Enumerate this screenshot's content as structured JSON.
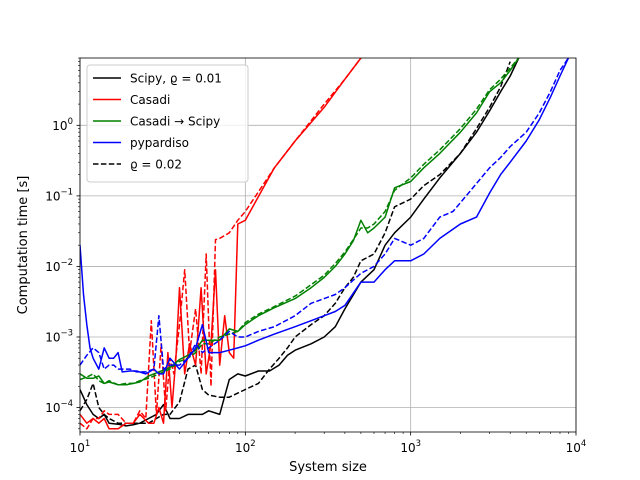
{
  "chart_data": {
    "type": "line",
    "title": "",
    "xlabel": "System size",
    "ylabel": "Computation time [s]",
    "xscale": "log",
    "yscale": "log",
    "xlim": [
      10,
      10000
    ],
    "ylim": [
      4.5e-05,
      9
    ],
    "grid": true,
    "legend_position": "top-left",
    "x_ticks": [
      {
        "value": 10,
        "base": "10",
        "exp": "1"
      },
      {
        "value": 100,
        "base": "10",
        "exp": "2"
      },
      {
        "value": 1000,
        "base": "10",
        "exp": "3"
      },
      {
        "value": 10000,
        "base": "10",
        "exp": "4"
      }
    ],
    "y_ticks": [
      {
        "value": 0.0001,
        "base": "10",
        "exp": "−4"
      },
      {
        "value": 0.001,
        "base": "10",
        "exp": "−3"
      },
      {
        "value": 0.01,
        "base": "10",
        "exp": "−2"
      },
      {
        "value": 0.1,
        "base": "10",
        "exp": "−1"
      },
      {
        "value": 1,
        "base": "10",
        "exp": "0"
      }
    ],
    "legend": [
      {
        "label": "Scipy, ϱ = 0.01",
        "color": "#000000",
        "dash": false
      },
      {
        "label": "Casadi",
        "color": "#ff0000",
        "dash": false
      },
      {
        "label": "Casadi → Scipy",
        "color": "#008000",
        "dash": false
      },
      {
        "label": "pypardiso",
        "color": "#0000ff",
        "dash": false
      },
      {
        "label": "ϱ = 0.02",
        "color": "#000000",
        "dash": true
      }
    ],
    "series": [
      {
        "key": "scipy_001",
        "color": "#000000",
        "dash": false,
        "x": [
          10,
          11,
          12,
          13,
          14,
          15,
          17,
          19,
          21,
          23,
          26,
          29,
          32,
          35,
          40,
          45,
          50,
          55,
          60,
          70,
          80,
          90,
          100,
          120,
          140,
          160,
          180,
          200,
          250,
          300,
          350,
          400,
          500,
          600,
          700,
          800,
          1000,
          1200,
          1500,
          2000,
          2500,
          3000,
          3500,
          4000,
          4500
        ],
        "y": [
          0.00018,
          0.00011,
          8e-05,
          7e-05,
          8e-05,
          6e-05,
          5.8e-05,
          5.5e-05,
          5.7e-05,
          6e-05,
          7e-05,
          8e-05,
          0.00011,
          7e-05,
          7e-05,
          8e-05,
          8e-05,
          8e-05,
          9e-05,
          8e-05,
          0.00025,
          0.0003,
          0.00028,
          0.00033,
          0.00033,
          0.0004,
          0.00055,
          0.00065,
          0.0008,
          0.001,
          0.0014,
          0.0025,
          0.006,
          0.009,
          0.02,
          0.03,
          0.05,
          0.09,
          0.18,
          0.4,
          0.8,
          1.6,
          3,
          5,
          9
        ]
      },
      {
        "key": "scipy_002",
        "color": "#000000",
        "dash": true,
        "x": [
          10,
          11,
          12,
          13,
          14,
          15,
          17,
          19,
          21,
          23,
          26,
          29,
          32,
          35,
          40,
          45,
          50,
          55,
          60,
          70,
          80,
          90,
          100,
          120,
          140,
          160,
          180,
          200,
          250,
          300,
          350,
          400,
          450,
          500,
          600,
          700,
          800,
          1000,
          1200,
          1500,
          2000,
          2500,
          3000,
          3500,
          4000
        ],
        "y": [
          9e-05,
          0.00013,
          0.00022,
          0.0001,
          8e-05,
          7e-05,
          6e-05,
          6e-05,
          6e-05,
          6e-05,
          6e-05,
          7e-05,
          8e-05,
          8e-05,
          0.00012,
          0.00035,
          0.0004,
          0.00018,
          0.00015,
          0.00014,
          0.00014,
          0.00016,
          0.00018,
          0.00022,
          0.00035,
          0.0005,
          0.0007,
          0.001,
          0.0015,
          0.002,
          0.003,
          0.005,
          0.007,
          0.012,
          0.015,
          0.03,
          0.07,
          0.09,
          0.14,
          0.2,
          0.4,
          0.9,
          1.8,
          3.5,
          8
        ]
      },
      {
        "key": "casadi",
        "color": "#ff0000",
        "dash": false,
        "x": [
          10,
          11,
          12,
          13,
          14,
          15,
          17,
          19,
          21,
          23,
          26,
          28,
          30,
          32,
          34,
          36,
          38,
          40,
          43,
          46,
          50,
          54,
          58,
          62,
          66,
          70,
          75,
          80,
          85,
          90,
          100,
          150,
          200,
          300,
          400,
          500
        ],
        "y": [
          8e-05,
          6e-05,
          7e-05,
          6e-05,
          7e-05,
          5e-05,
          5e-05,
          6e-05,
          6e-05,
          8e-05,
          6e-05,
          6e-05,
          0.0001,
          6e-05,
          0.0006,
          0.0001,
          0.0005,
          0.005,
          0.0003,
          0.0008,
          0.0004,
          0.005,
          0.0003,
          0.0008,
          0.009,
          0.0004,
          0.002,
          0.0006,
          0.0005,
          0.04,
          0.045,
          0.25,
          0.6,
          1.8,
          4.5,
          9
        ]
      },
      {
        "key": "casadi_002",
        "color": "#ff0000",
        "dash": true,
        "x": [
          10,
          11,
          12,
          13,
          14,
          15,
          17,
          19,
          21,
          23,
          25,
          27,
          29,
          31,
          33,
          35,
          37,
          40,
          43,
          46,
          50,
          54,
          58,
          62,
          66,
          70,
          80,
          90,
          100,
          150,
          200,
          300,
          400,
          500
        ],
        "y": [
          6e-05,
          5e-05,
          7e-05,
          7e-05,
          9e-05,
          8e-05,
          8e-05,
          6e-05,
          6e-05,
          9e-05,
          7e-05,
          0.0017,
          8e-05,
          0.0008,
          9e-05,
          0.0005,
          0.0003,
          0.0015,
          0.009,
          0.0006,
          0.0025,
          0.0003,
          0.015,
          0.0002,
          0.024,
          0.025,
          0.03,
          0.045,
          0.06,
          0.25,
          0.6,
          2,
          4.5,
          9
        ]
      },
      {
        "key": "casadi_scipy",
        "color": "#008000",
        "dash": false,
        "x": [
          10,
          11,
          12,
          13,
          14,
          15,
          17,
          19,
          21,
          23,
          26,
          30,
          35,
          40,
          45,
          50,
          55,
          60,
          70,
          80,
          90,
          100,
          120,
          150,
          200,
          250,
          300,
          350,
          400,
          450,
          500,
          550,
          600,
          700,
          800,
          1000,
          1200,
          1500,
          2000,
          2500,
          3000,
          3500,
          4000,
          4500
        ],
        "y": [
          0.0003,
          0.00026,
          0.00026,
          0.00028,
          0.00022,
          0.00023,
          0.00021,
          0.00021,
          0.00022,
          0.00023,
          0.00028,
          0.00032,
          0.00037,
          0.00048,
          0.00055,
          0.00065,
          0.0009,
          0.0009,
          0.0009,
          0.0013,
          0.0012,
          0.0015,
          0.002,
          0.0026,
          0.0035,
          0.005,
          0.007,
          0.01,
          0.015,
          0.023,
          0.045,
          0.03,
          0.035,
          0.05,
          0.13,
          0.16,
          0.25,
          0.4,
          0.8,
          1.5,
          3,
          4,
          6,
          9
        ]
      },
      {
        "key": "casadi_scipy_002",
        "color": "#008000",
        "dash": true,
        "x": [
          10,
          11,
          12,
          13,
          14,
          15,
          17,
          19,
          21,
          23,
          26,
          30,
          35,
          40,
          45,
          50,
          55,
          60,
          70,
          80,
          90,
          100,
          120,
          150,
          200,
          250,
          300,
          350,
          400,
          450,
          500,
          550,
          600,
          700,
          800,
          1000,
          1200,
          1500,
          2000,
          2500,
          3000,
          3500,
          4000,
          4500
        ],
        "y": [
          0.00025,
          0.00027,
          0.0003,
          0.00024,
          0.00022,
          0.00024,
          0.00021,
          0.00022,
          0.00022,
          0.00024,
          0.00026,
          0.0003,
          0.00035,
          0.00045,
          0.0005,
          0.0006,
          0.0008,
          0.0008,
          0.001,
          0.0011,
          0.0012,
          0.0016,
          0.0021,
          0.0027,
          0.0038,
          0.0055,
          0.0075,
          0.011,
          0.016,
          0.024,
          0.035,
          0.035,
          0.04,
          0.06,
          0.12,
          0.18,
          0.28,
          0.45,
          0.9,
          1.7,
          3.2,
          4.5,
          6.5,
          9
        ]
      },
      {
        "key": "pypardiso",
        "color": "#0000ff",
        "dash": false,
        "x": [
          10,
          10.5,
          11,
          11.5,
          12,
          13,
          14,
          15,
          16,
          17,
          18,
          20,
          22,
          25,
          28,
          30,
          32,
          35,
          40,
          45,
          50,
          55,
          60,
          70,
          80,
          90,
          100,
          120,
          150,
          200,
          250,
          300,
          350,
          400,
          500,
          600,
          700,
          800,
          1000,
          1200,
          1500,
          2000,
          2500,
          3000,
          3500,
          4000,
          5000,
          6000,
          7000,
          8000,
          9000
        ],
        "y": [
          0.02,
          0.004,
          0.0015,
          0.0007,
          0.0005,
          0.00035,
          0.0007,
          0.0005,
          0.0005,
          0.0006,
          0.00032,
          0.00033,
          0.00033,
          0.0003,
          0.00035,
          0.0003,
          0.0003,
          0.0005,
          0.00035,
          0.0005,
          0.0007,
          0.0015,
          0.0006,
          0.0006,
          0.00065,
          0.0007,
          0.00075,
          0.0009,
          0.0011,
          0.0014,
          0.0017,
          0.002,
          0.0023,
          0.0028,
          0.006,
          0.006,
          0.009,
          0.012,
          0.012,
          0.015,
          0.025,
          0.04,
          0.05,
          0.11,
          0.2,
          0.3,
          0.6,
          1.2,
          2.5,
          5,
          9
        ]
      },
      {
        "key": "pypardiso_002",
        "color": "#0000ff",
        "dash": true,
        "x": [
          10,
          11,
          12,
          13,
          14,
          15,
          16,
          17,
          18,
          20,
          22,
          25,
          28,
          30,
          32,
          35,
          40,
          45,
          50,
          55,
          60,
          70,
          80,
          90,
          100,
          120,
          150,
          200,
          250,
          300,
          350,
          400,
          500,
          600,
          700,
          800,
          1000,
          1200,
          1500,
          1800,
          2000,
          2500,
          3000,
          3500,
          4000,
          5000,
          6000,
          7000,
          8000,
          9000
        ],
        "y": [
          0.0004,
          0.00055,
          0.0007,
          0.0006,
          0.00035,
          0.0004,
          0.0004,
          0.00035,
          0.00035,
          0.00035,
          0.00032,
          0.00032,
          0.00035,
          0.002,
          0.00035,
          0.0004,
          0.0004,
          0.0005,
          0.0008,
          0.0006,
          0.0007,
          0.0009,
          0.0012,
          0.001,
          0.001,
          0.0012,
          0.0014,
          0.002,
          0.003,
          0.0035,
          0.004,
          0.005,
          0.008,
          0.01,
          0.015,
          0.025,
          0.02,
          0.025,
          0.05,
          0.06,
          0.08,
          0.15,
          0.25,
          0.35,
          0.5,
          0.8,
          1.5,
          3,
          6,
          9
        ]
      }
    ]
  }
}
